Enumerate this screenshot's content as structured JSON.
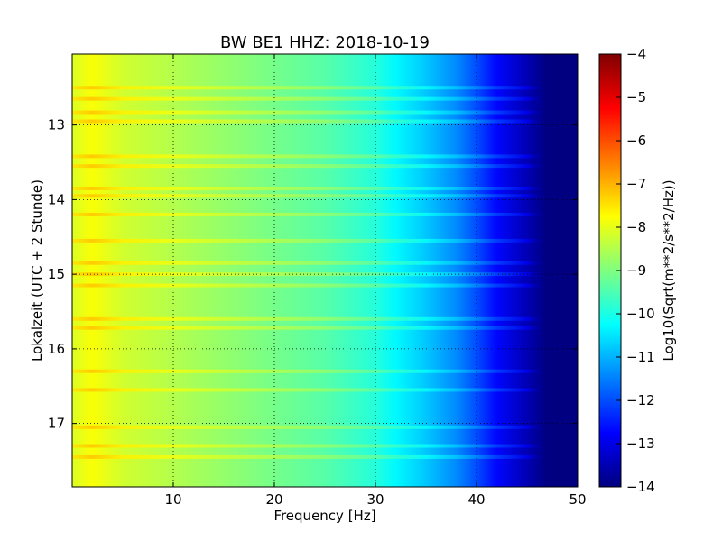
{
  "chart_data": {
    "type": "heatmap",
    "title": "BW BE1 HHZ: 2018-10-19",
    "xlabel": "Frequency [Hz]",
    "ylabel": "Lokalzeit (UTC + 2 Stunde)",
    "xlim": [
      0,
      50
    ],
    "ylim": [
      17.85,
      12.05
    ],
    "y_inverted": true,
    "x_ticks": [
      10,
      20,
      30,
      40,
      50
    ],
    "y_ticks": [
      13,
      14,
      15,
      16,
      17
    ],
    "grid": true,
    "colormap": "jet",
    "colorbar": {
      "label": "Log10(Sqrt(m**2/s**2/Hz))",
      "range": [
        -14,
        -4
      ],
      "ticks": [
        -4,
        -5,
        -6,
        -7,
        -8,
        -9,
        -10,
        -11,
        -12,
        -13,
        -14
      ]
    },
    "spectral_profile": {
      "frequency_hz": [
        0,
        2,
        5,
        10,
        15,
        20,
        25,
        30,
        32,
        35,
        38,
        40,
        42,
        45,
        47,
        50
      ],
      "log10_psd": [
        -8.1,
        -7.8,
        -8.2,
        -8.5,
        -8.8,
        -9.1,
        -9.4,
        -9.9,
        -10.3,
        -10.8,
        -11.4,
        -12.0,
        -12.7,
        -13.5,
        -14.0,
        -14.0
      ]
    },
    "bright_bands_hours": [
      12.5,
      12.65,
      12.83,
      12.95,
      13.42,
      13.55,
      13.85,
      13.95,
      14.2,
      14.55,
      14.85,
      15.0,
      15.15,
      15.6,
      15.72,
      16.3,
      16.55,
      17.05,
      17.3,
      17.45
    ]
  }
}
